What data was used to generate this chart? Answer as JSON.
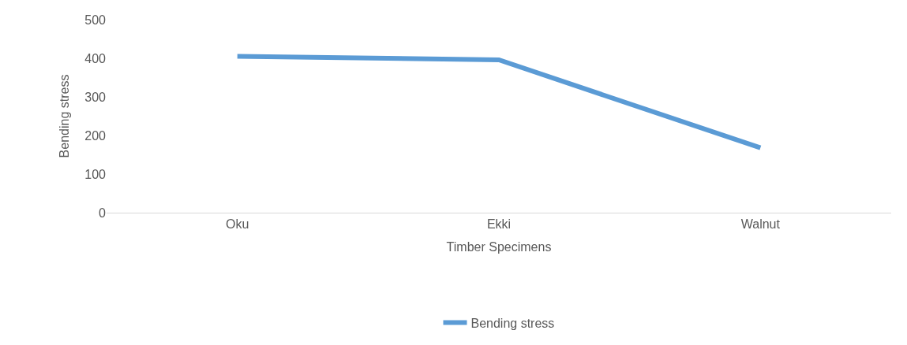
{
  "chart_data": {
    "type": "line",
    "xlabel": "Timber Specimens",
    "ylabel": "Bending stress",
    "categories": [
      "Oku",
      "Ekki",
      "Walnut"
    ],
    "series": [
      {
        "name": "Bending stress",
        "color": "#5b9bd5",
        "values": [
          405,
          396,
          168
        ]
      }
    ],
    "ylim": [
      0,
      500
    ],
    "yticks": [
      0,
      100,
      200,
      300,
      400,
      500
    ],
    "legend": "bottom",
    "marker": "none",
    "line_style": "solid"
  }
}
